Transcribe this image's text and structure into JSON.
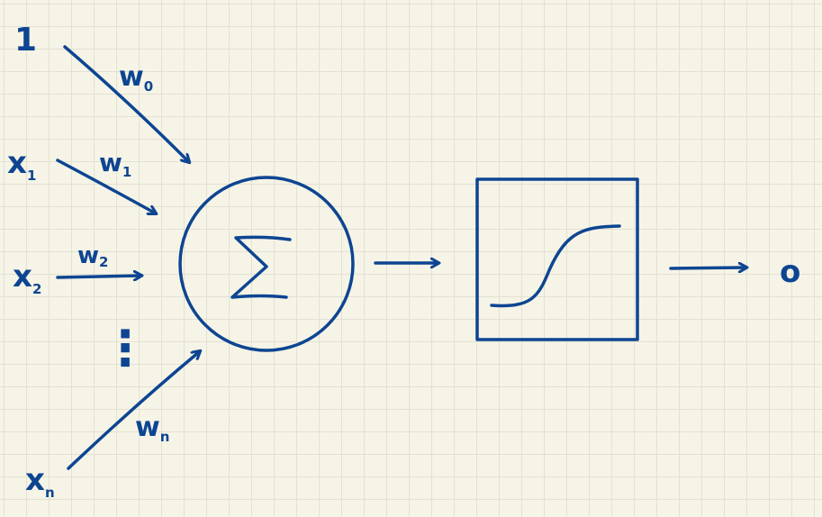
{
  "inputs": [
    {
      "label": "1",
      "sub": ""
    },
    {
      "label": "x",
      "sub": "1"
    },
    {
      "label": "x",
      "sub": "2"
    },
    {
      "label": "x",
      "sub": "n"
    }
  ],
  "weights": [
    {
      "label": "w",
      "sub": "0"
    },
    {
      "label": "w",
      "sub": "1"
    },
    {
      "label": "w",
      "sub": "2"
    },
    {
      "label": "w",
      "sub": "n"
    }
  ],
  "ellipsis": "⋮",
  "summation_symbol": "Σ",
  "output_label": "o",
  "colors": {
    "ink": "#0d4592",
    "paper": "#f6f4e6",
    "grid": "#e3e1d2"
  }
}
